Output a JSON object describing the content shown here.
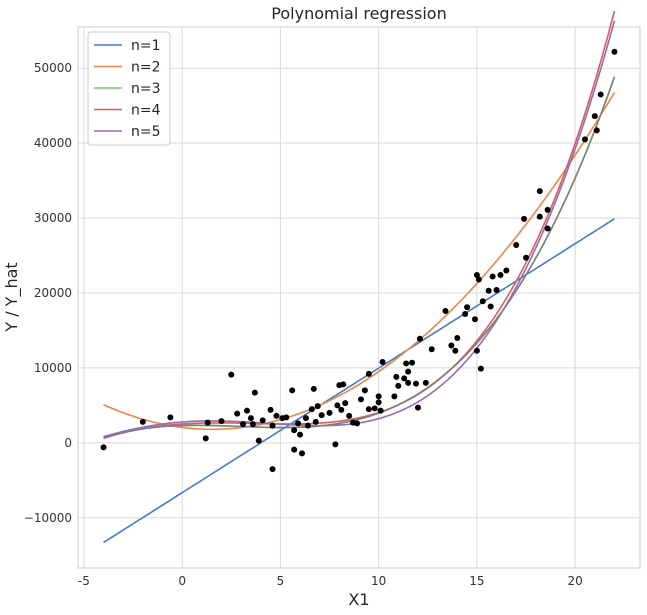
{
  "chart_data": {
    "type": "scatter",
    "title": "Polynomial regression",
    "xlabel": "X1",
    "ylabel": "Y / Y_hat",
    "xlim": [
      -5.3,
      23.3
    ],
    "ylim": [
      -16700,
      55500
    ],
    "xticks": [
      -5,
      0,
      5,
      10,
      15,
      20
    ],
    "yticks": [
      -10000,
      0,
      10000,
      20000,
      30000,
      40000,
      50000
    ],
    "ytick_labels": [
      "−10000",
      "0",
      "10000",
      "20000",
      "30000",
      "40000",
      "50000"
    ],
    "grid": true,
    "legend_position": "top-left",
    "scatter_color": "#000000",
    "points": [
      [
        -4.0,
        -600
      ],
      [
        -2.0,
        2800
      ],
      [
        -0.6,
        3400
      ],
      [
        1.2,
        600
      ],
      [
        1.3,
        2700
      ],
      [
        2.0,
        2900
      ],
      [
        2.5,
        9100
      ],
      [
        2.8,
        3900
      ],
      [
        3.1,
        2500
      ],
      [
        3.3,
        4300
      ],
      [
        3.5,
        3300
      ],
      [
        3.6,
        2500
      ],
      [
        3.7,
        6700
      ],
      [
        3.9,
        300
      ],
      [
        4.1,
        3000
      ],
      [
        4.5,
        4400
      ],
      [
        4.6,
        -3500
      ],
      [
        4.6,
        2300
      ],
      [
        4.8,
        3600
      ],
      [
        5.1,
        3300
      ],
      [
        5.3,
        3400
      ],
      [
        5.6,
        7000
      ],
      [
        5.7,
        -900
      ],
      [
        5.7,
        1700
      ],
      [
        5.9,
        2600
      ],
      [
        6.0,
        1100
      ],
      [
        6.1,
        -1400
      ],
      [
        6.3,
        3300
      ],
      [
        6.4,
        2300
      ],
      [
        6.6,
        4500
      ],
      [
        6.7,
        7200
      ],
      [
        6.8,
        2800
      ],
      [
        6.9,
        4900
      ],
      [
        7.1,
        3700
      ],
      [
        7.5,
        4000
      ],
      [
        7.8,
        -200
      ],
      [
        7.9,
        5000
      ],
      [
        8.0,
        7700
      ],
      [
        8.1,
        4400
      ],
      [
        8.2,
        7800
      ],
      [
        8.3,
        5300
      ],
      [
        8.5,
        3600
      ],
      [
        8.7,
        2700
      ],
      [
        8.9,
        2600
      ],
      [
        9.1,
        5800
      ],
      [
        9.3,
        7000
      ],
      [
        9.5,
        9200
      ],
      [
        9.5,
        4500
      ],
      [
        9.8,
        4600
      ],
      [
        10.0,
        5400
      ],
      [
        10.0,
        6200
      ],
      [
        10.1,
        4300
      ],
      [
        10.2,
        10800
      ],
      [
        10.8,
        6200
      ],
      [
        10.9,
        8800
      ],
      [
        11.0,
        7600
      ],
      [
        11.3,
        8600
      ],
      [
        11.4,
        10600
      ],
      [
        11.5,
        9500
      ],
      [
        11.5,
        8000
      ],
      [
        11.7,
        10700
      ],
      [
        11.9,
        7900
      ],
      [
        12.0,
        4700
      ],
      [
        12.1,
        13900
      ],
      [
        12.4,
        8000
      ],
      [
        12.7,
        12500
      ],
      [
        13.4,
        17600
      ],
      [
        13.7,
        13000
      ],
      [
        13.9,
        12300
      ],
      [
        14.0,
        14000
      ],
      [
        14.4,
        17200
      ],
      [
        14.5,
        18100
      ],
      [
        14.9,
        16500
      ],
      [
        15.0,
        12300
      ],
      [
        15.0,
        22400
      ],
      [
        15.1,
        21800
      ],
      [
        15.2,
        9900
      ],
      [
        15.3,
        18900
      ],
      [
        15.6,
        20300
      ],
      [
        15.7,
        18200
      ],
      [
        15.8,
        22200
      ],
      [
        16.0,
        20400
      ],
      [
        16.2,
        22400
      ],
      [
        16.5,
        23000
      ],
      [
        17.0,
        26400
      ],
      [
        17.4,
        29900
      ],
      [
        17.5,
        24700
      ],
      [
        18.2,
        33600
      ],
      [
        18.2,
        30200
      ],
      [
        18.6,
        31100
      ],
      [
        18.6,
        28600
      ],
      [
        20.5,
        40500
      ],
      [
        21.0,
        43600
      ],
      [
        21.1,
        41700
      ],
      [
        21.3,
        46500
      ],
      [
        22.0,
        52200
      ]
    ],
    "series": [
      {
        "name": "n=1",
        "color": "#4878d0",
        "degree": 1,
        "coefficients": [
          -6648.28,
          1661.57
        ]
      },
      {
        "name": "n=2",
        "color": "#ee854a",
        "degree": 2,
        "coefficients": [
          2061.38,
          -328.45,
          107.3
        ]
      },
      {
        "name": "n=3",
        "color": "#6acc64",
        "degree": 3,
        "coefficients": [
          2316.66,
          75.54,
          -60.84,
          6.98
        ]
      },
      {
        "name": "n=4",
        "color": "#d65f5f",
        "degree": 4,
        "coefficients": [
          2520.3,
          172.52,
          -59.0,
          4.2,
          0.15
        ]
      },
      {
        "name": "n=5",
        "color": "#956cb4",
        "degree": 5,
        "coefficients": [
          2786.58,
          198.67,
          -71.39,
          2.11,
          0.421,
          -0.00725
        ]
      }
    ],
    "overlay_line": {
      "color": "#7f7f7f",
      "degree": 3,
      "coefficients": [
        2316.66,
        75.54,
        -60.84,
        6.98
      ]
    }
  }
}
